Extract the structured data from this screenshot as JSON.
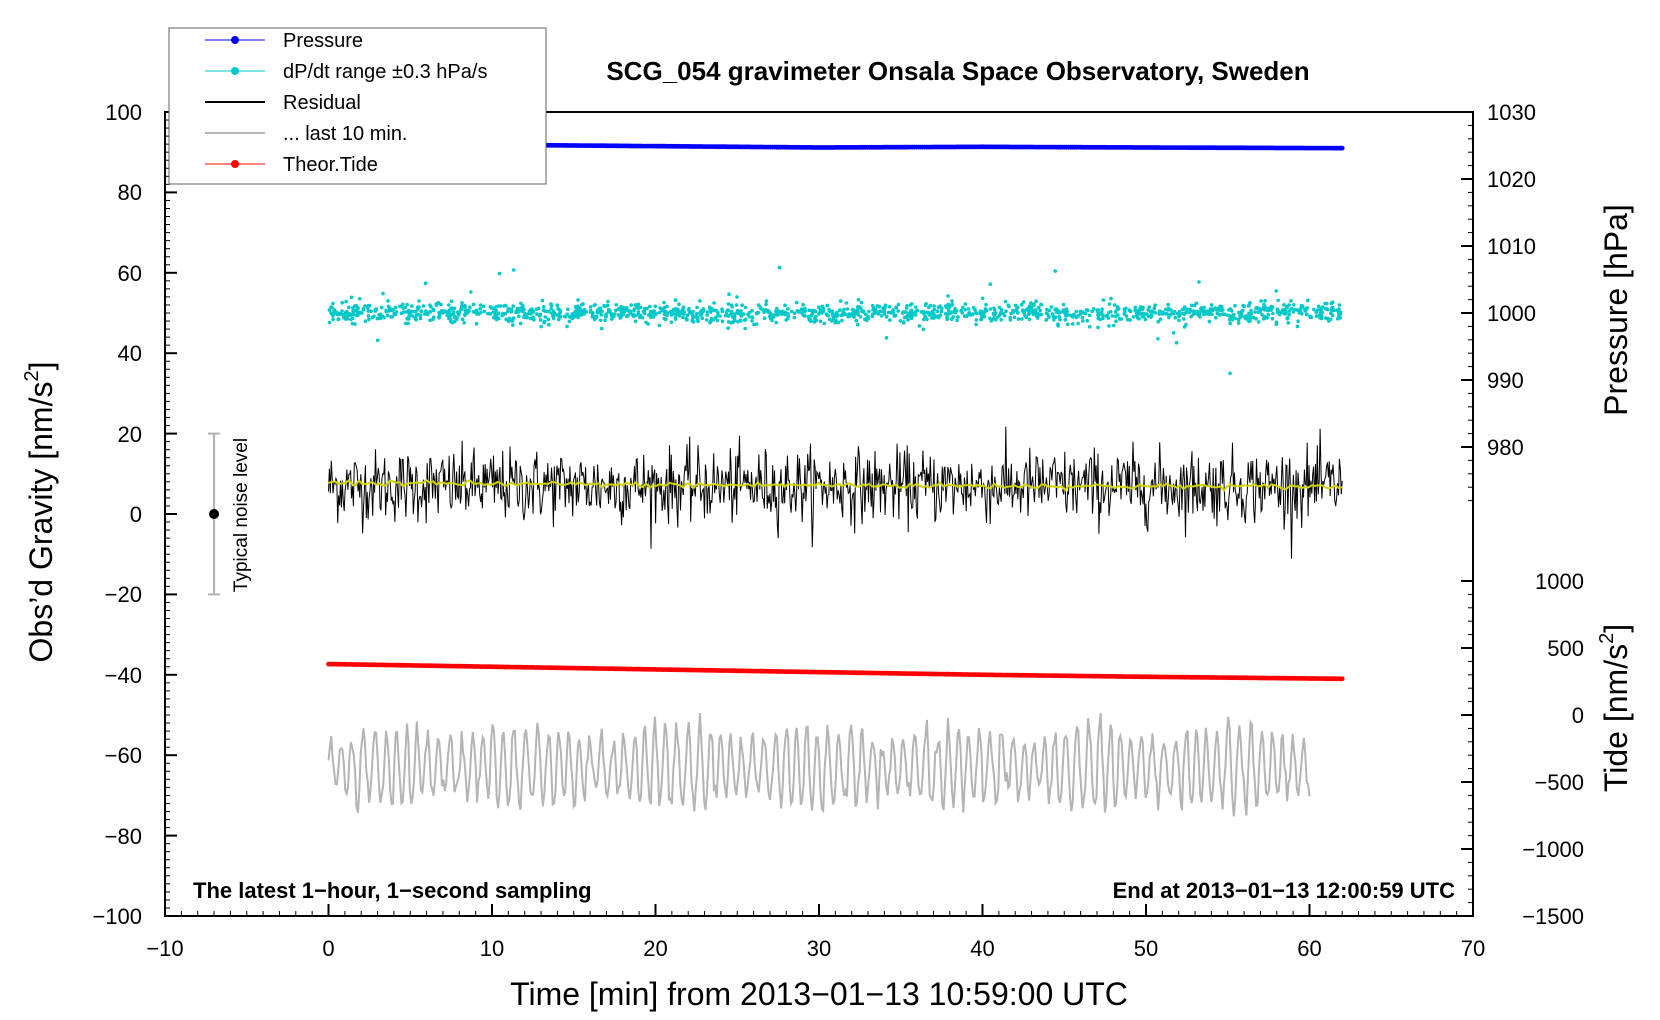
{
  "chart_data": {
    "type": "line",
    "title": "SCG_054 gravimeter Onsala Space Observatory, Sweden",
    "xlabel": "Time [min] from 2013−01−13 10:59:00 UTC",
    "ylabel_left_main": "Obs’d Gravity [nm/s",
    "ylabel_left_sup": "2",
    "ylabel_left_tail": "]",
    "ylabel_right_pressure": "Pressure [hPa]",
    "ylabel_right_tide_main": "Tide [nm/s",
    "ylabel_right_tide_sup": "2",
    "ylabel_right_tide_tail": "]",
    "xlim": [
      -10,
      70
    ],
    "ylim": [
      -100,
      100
    ],
    "pressure_axis_range": [
      970,
      1030
    ],
    "tide_axis_range": [
      -1500,
      1000
    ],
    "x_ticks": [
      "−10",
      "0",
      "10",
      "20",
      "30",
      "40",
      "50",
      "60",
      "70"
    ],
    "y_ticks_left": [
      "100",
      "80",
      "60",
      "40",
      "20",
      "0",
      "−20",
      "−40",
      "−60",
      "−80",
      "−100"
    ],
    "y_ticks_pressure": [
      "1030",
      "1020",
      "1010",
      "1000",
      "990",
      "980"
    ],
    "y_ticks_tide": [
      "1000",
      "500",
      "0",
      "−500",
      "−1000",
      "−1500"
    ],
    "note_left": "The latest 1−hour, 1−second sampling",
    "note_right": "End at 2013−01−13 12:00:59 UTC",
    "noise_label": "Typical noise level",
    "noise_bar": {
      "x": -7,
      "center": 0,
      "low": -20,
      "high": 20
    },
    "grid": false,
    "legend_position": "top-left",
    "legend": [
      {
        "label": "Pressure",
        "color": "#0000ff",
        "marker": "dot"
      },
      {
        "label": "dP/dt range ±0.3 hPa/s",
        "color": "#00c8c8",
        "marker": "dot"
      },
      {
        "label": "Residual",
        "color": "#000000",
        "marker": "line"
      },
      {
        "label": "... last 10 min.",
        "color": "#b4b4b4",
        "marker": "line"
      },
      {
        "label": "Theor.Tide",
        "color": "#ff0000",
        "marker": "dot"
      }
    ],
    "series": [
      {
        "name": "Pressure",
        "color": "#0000ff",
        "axis": "pressure",
        "x": [
          0,
          10,
          20,
          30,
          40,
          50,
          62
        ],
        "y": [
          1025.0,
          1025.1,
          1024.9,
          1024.7,
          1024.8,
          1024.7,
          1024.6
        ]
      },
      {
        "name": "dP/dt range ±0.3 hPa/s",
        "color": "#00c8c8",
        "axis": "gravity",
        "x_range": [
          0,
          62
        ],
        "center": 50,
        "typical_spread": 2,
        "extremes": [
          35,
          64
        ]
      },
      {
        "name": "Residual",
        "color": "#000000",
        "axis": "gravity",
        "x_range": [
          0,
          62
        ],
        "center": 7,
        "typical_spread": 6,
        "extremes": [
          -12,
          27
        ]
      },
      {
        "name": "Residual mean",
        "color": "#d2d200",
        "axis": "gravity",
        "x": [
          0,
          10,
          20,
          30,
          40,
          50,
          62
        ],
        "y": [
          7.8,
          7.5,
          7.2,
          7.2,
          7.0,
          6.9,
          6.8
        ]
      },
      {
        "name": "... last 10 min.",
        "color": "#b4b4b4",
        "axis": "gravity",
        "x_range": [
          0,
          60
        ],
        "center": -63,
        "typical_spread": 8,
        "extremes": [
          -78,
          -45
        ]
      },
      {
        "name": "Theor.Tide",
        "color": "#ff0000",
        "axis": "tide",
        "x": [
          0,
          10,
          20,
          30,
          40,
          50,
          62
        ],
        "y": [
          380,
          360,
          340,
          320,
          300,
          285,
          270
        ]
      }
    ]
  }
}
